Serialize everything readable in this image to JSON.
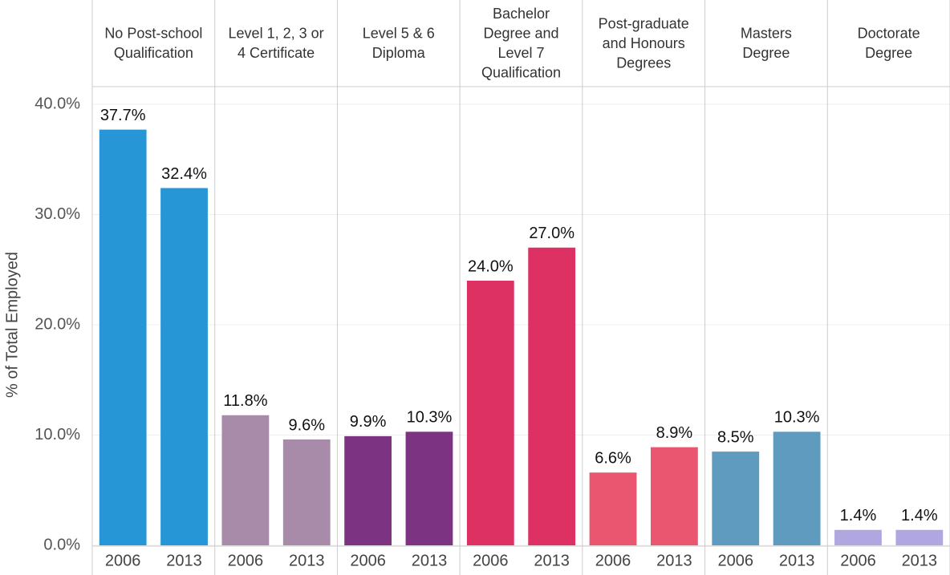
{
  "chart_data": {
    "type": "bar",
    "y_label": "% of Total Employed",
    "ylim": [
      0,
      40
    ],
    "yticks": [
      {
        "value": 0,
        "label": "0.0%"
      },
      {
        "value": 10,
        "label": "10.0%"
      },
      {
        "value": 20,
        "label": "20.0%"
      },
      {
        "value": 30,
        "label": "30.0%"
      },
      {
        "value": 40,
        "label": "40.0%"
      }
    ],
    "grid": true,
    "groups": [
      {
        "label_lines": [
          "No Post-school",
          "Qualification"
        ],
        "color": "#2796d6",
        "categories": [
          "2006",
          "2013"
        ],
        "values": [
          37.7,
          32.4
        ],
        "value_labels": [
          "37.7%",
          "32.4%"
        ]
      },
      {
        "label_lines": [
          "Level 1, 2, 3 or",
          "4 Certificate"
        ],
        "color": "#a78ba8",
        "categories": [
          "2006",
          "2013"
        ],
        "values": [
          11.8,
          9.6
        ],
        "value_labels": [
          "11.8%",
          "9.6%"
        ]
      },
      {
        "label_lines": [
          "Level 5 & 6",
          "Diploma"
        ],
        "color": "#7b3382",
        "categories": [
          "2006",
          "2013"
        ],
        "values": [
          9.9,
          10.3
        ],
        "value_labels": [
          "9.9%",
          "10.3%"
        ]
      },
      {
        "label_lines": [
          "Bachelor",
          "Degree and",
          "Level 7",
          "Qualification"
        ],
        "color": "#dd3063",
        "categories": [
          "2006",
          "2013"
        ],
        "values": [
          24.0,
          27.0
        ],
        "value_labels": [
          "24.0%",
          "27.0%"
        ]
      },
      {
        "label_lines": [
          "Post-graduate",
          "and Honours",
          "Degrees"
        ],
        "color": "#ea5670",
        "categories": [
          "2006",
          "2013"
        ],
        "values": [
          6.6,
          8.9
        ],
        "value_labels": [
          "6.6%",
          "8.9%"
        ]
      },
      {
        "label_lines": [
          "Masters",
          "Degree"
        ],
        "color": "#5e9bbf",
        "categories": [
          "2006",
          "2013"
        ],
        "values": [
          8.5,
          10.3
        ],
        "value_labels": [
          "8.5%",
          "10.3%"
        ]
      },
      {
        "label_lines": [
          "Doctorate",
          "Degree"
        ],
        "color": "#b1a7e0",
        "categories": [
          "2006",
          "2013"
        ],
        "values": [
          1.4,
          1.4
        ],
        "value_labels": [
          "1.4%",
          "1.4%"
        ]
      }
    ]
  }
}
